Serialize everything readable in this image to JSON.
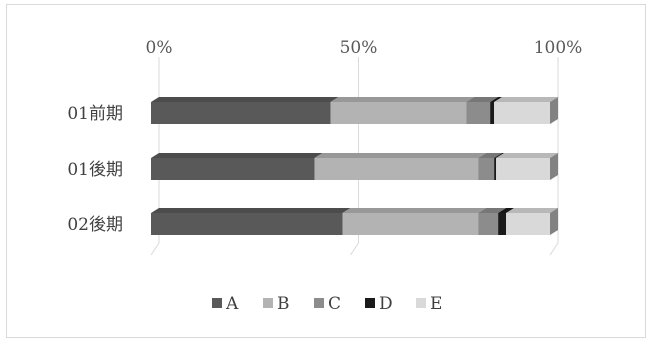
{
  "chart_data": {
    "type": "bar",
    "orientation": "horizontal",
    "stacked": "percent",
    "style": "3d",
    "title": "",
    "xlabel": "",
    "ylabel": "",
    "axis_position": "top",
    "xlim": [
      0,
      100
    ],
    "x_ticks": [
      "0%",
      "50%",
      "100%"
    ],
    "categories": [
      "01前期",
      "01後期",
      "02後期"
    ],
    "series": [
      {
        "name": "A",
        "color": "#595959",
        "values": [
          45,
          41,
          48
        ]
      },
      {
        "name": "B",
        "color": "#b3b3b3",
        "values": [
          34,
          41,
          34
        ]
      },
      {
        "name": "C",
        "color": "#8c8c8c",
        "values": [
          6,
          4,
          5
        ]
      },
      {
        "name": "D",
        "color": "#1a1a1a",
        "values": [
          1,
          0.5,
          2
        ]
      },
      {
        "name": "E",
        "color": "#d9d9d9",
        "values": [
          14,
          13.5,
          11
        ]
      }
    ],
    "gridlines": true,
    "legend_position": "bottom"
  }
}
